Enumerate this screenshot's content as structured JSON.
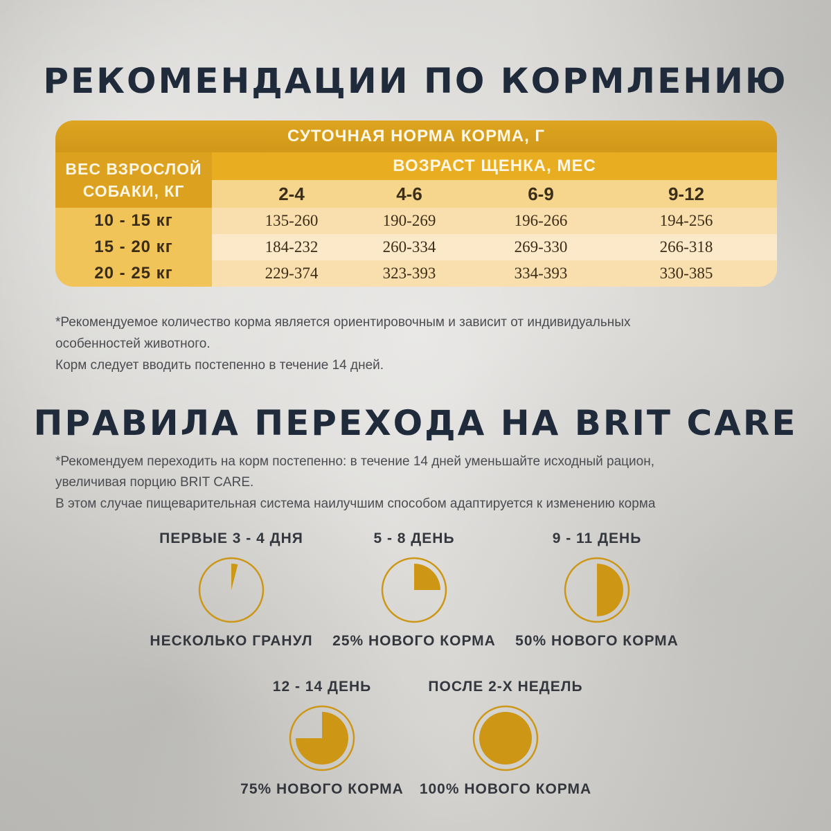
{
  "title": "РЕКОМЕНДАЦИИ ПО КОРМЛЕНИЮ",
  "table": {
    "header": "СУТОЧНАЯ НОРМА КОРМА, Г",
    "weight_header_line1": "ВЕС ВЗРОСЛОЙ",
    "weight_header_line2": "СОБАКИ, КГ",
    "age_header": "ВОЗРАСТ ЩЕНКА, МЕС",
    "age_columns": [
      "2-4",
      "4-6",
      "6-9",
      "9-12"
    ],
    "rows": [
      {
        "weight": "10 - 15 кг",
        "values": [
          "135-260",
          "190-269",
          "196-266",
          "194-256"
        ]
      },
      {
        "weight": "15 - 20 кг",
        "values": [
          "184-232",
          "260-334",
          "269-330",
          "266-318"
        ]
      },
      {
        "weight": "20 - 25 кг",
        "values": [
          "229-374",
          "323-393",
          "334-393",
          "330-385"
        ]
      }
    ]
  },
  "note1": {
    "line1": "*Рекомендуемое количество корма является ориентировочным и зависит от индивидуальных",
    "line2": "особенностей животного.",
    "line3": "Корм следует вводить постепенно в течение 14 дней."
  },
  "title2": "ПРАВИЛА ПЕРЕХОДА НА BRIT CARE",
  "note2": {
    "line1": "*Рекомендуем переходить на корм постепенно: в течение 14 дней уменьшайте исходный рацион,",
    "line2": "увеличивая порцию BRIT CARE.",
    "line3": "В этом случае пищеварительная система наилучшим способом адаптируется к изменению корма"
  },
  "steps": [
    {
      "period": "ПЕРВЫЕ 3 - 4 ДНЯ",
      "label": "НЕСКОЛЬКО ГРАНУЛ",
      "fraction": 0.04
    },
    {
      "period": "5 - 8 ДЕНЬ",
      "label": "25% НОВОГО КОРМА",
      "fraction": 0.25
    },
    {
      "period": "9 - 11 ДЕНЬ",
      "label": "50% НОВОГО КОРМА",
      "fraction": 0.5
    },
    {
      "period": "12 - 14 ДЕНЬ",
      "label": "75% НОВОГО КОРМА",
      "fraction": 0.75
    },
    {
      "period": "ПОСЛЕ 2-Х НЕДЕЛЬ",
      "label": "100% НОВОГО КОРМА",
      "fraction": 1.0
    }
  ],
  "colors": {
    "accent": "#cd9614",
    "heading": "#1f2a3a"
  }
}
